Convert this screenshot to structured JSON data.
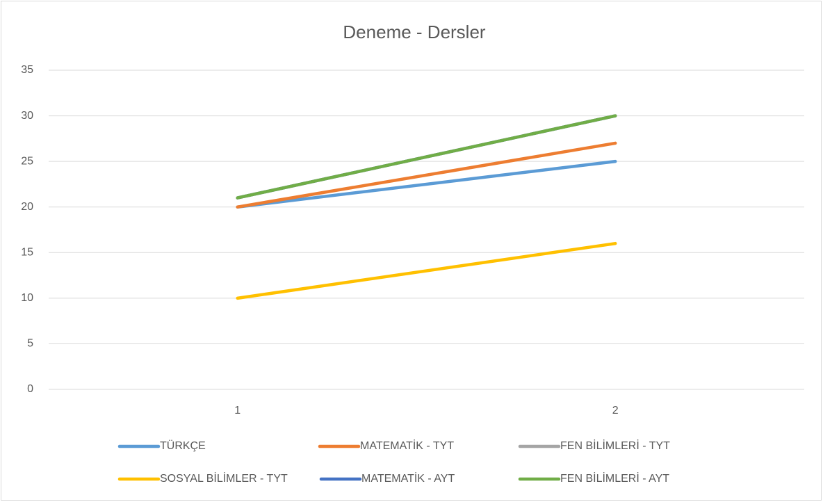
{
  "chart_data": {
    "type": "line",
    "title": "Deneme - Dersler",
    "categories": [
      "1",
      "2"
    ],
    "series": [
      {
        "name": "TÜRKÇE",
        "color": "#5b9bd5",
        "values": [
          20,
          25
        ]
      },
      {
        "name": "MATEMATİK - TYT",
        "color": "#ed7d31",
        "values": [
          20,
          27
        ]
      },
      {
        "name": "FEN BİLİMLERİ - TYT",
        "color": "#a5a5a5",
        "values": [
          21,
          30
        ]
      },
      {
        "name": "SOSYAL BİLİMLER - TYT",
        "color": "#ffc000",
        "values": [
          10,
          16
        ]
      },
      {
        "name": "MATEMATİK - AYT",
        "color": "#4472c4",
        "values": [
          21,
          30
        ]
      },
      {
        "name": "FEN BİLİMLERİ - AYT",
        "color": "#70ad47",
        "values": [
          21,
          30
        ]
      }
    ],
    "ylim": [
      0,
      35
    ],
    "yticks": [
      0,
      5,
      10,
      15,
      20,
      25,
      30,
      35
    ],
    "grid": true,
    "legend": "bottom"
  }
}
